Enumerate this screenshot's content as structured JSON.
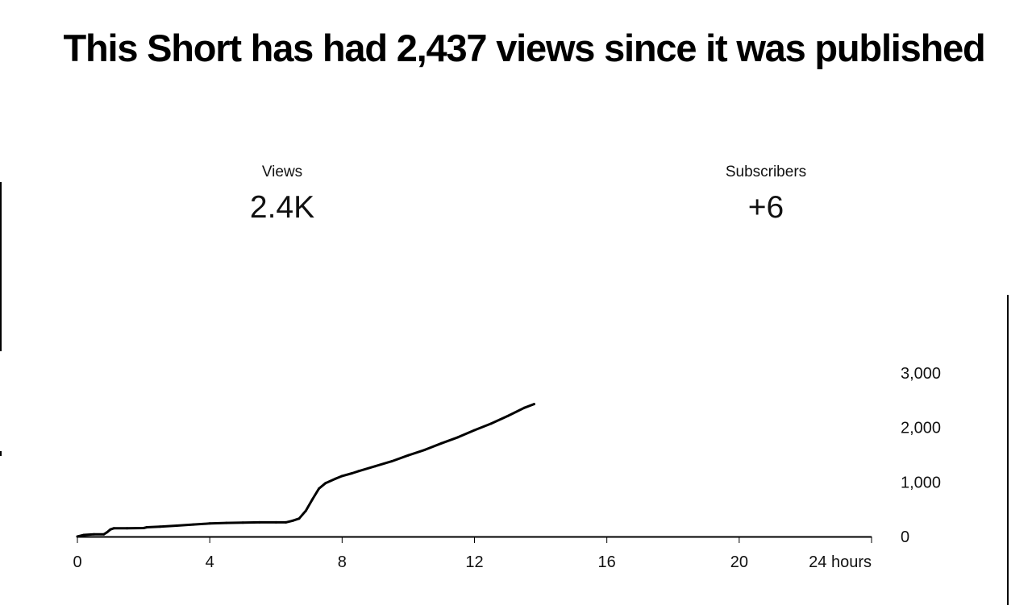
{
  "headline": "This Short has had 2,437 views since it was published",
  "metrics": {
    "views": {
      "label": "Views",
      "value": "2.4K"
    },
    "subscribers": {
      "label": "Subscribers",
      "value": "+6"
    }
  },
  "colors": {
    "line": "#000000",
    "text": "#111111",
    "background": "#ffffff"
  },
  "chart_data": {
    "type": "line",
    "title": "",
    "xlabel": "",
    "ylabel": "",
    "xlim": [
      0,
      24
    ],
    "ylim": [
      0,
      3000
    ],
    "x_ticks": [
      0,
      4,
      8,
      12,
      16,
      20,
      24
    ],
    "x_tick_labels": [
      "0",
      "4",
      "8",
      "12",
      "16",
      "20",
      "24 hours"
    ],
    "y_ticks": [
      0,
      1000,
      2000,
      3000
    ],
    "y_tick_labels": [
      "0",
      "1,000",
      "2,000",
      "3,000"
    ],
    "grid": false,
    "y_axis_side": "right",
    "series": [
      {
        "x": [
          0,
          0.2,
          0.5,
          0.8,
          0.9,
          1.0,
          1.1,
          1.5,
          2.0,
          2.1,
          2.5,
          3.0,
          3.5,
          4.0,
          4.5,
          5.0,
          5.5,
          6.0,
          6.3,
          6.5,
          6.7,
          6.9,
          7.1,
          7.3,
          7.5,
          7.8,
          8.0,
          8.3,
          8.5,
          9.0,
          9.5,
          10.0,
          10.5,
          11.0,
          11.5,
          12.0,
          12.5,
          13.0,
          13.5,
          13.8
        ],
        "y": [
          0,
          30,
          40,
          40,
          80,
          130,
          150,
          150,
          155,
          170,
          180,
          200,
          220,
          240,
          250,
          255,
          260,
          260,
          260,
          290,
          330,
          470,
          680,
          880,
          980,
          1060,
          1110,
          1160,
          1200,
          1290,
          1380,
          1490,
          1590,
          1710,
          1820,
          1950,
          2070,
          2210,
          2360,
          2430
        ]
      }
    ]
  }
}
